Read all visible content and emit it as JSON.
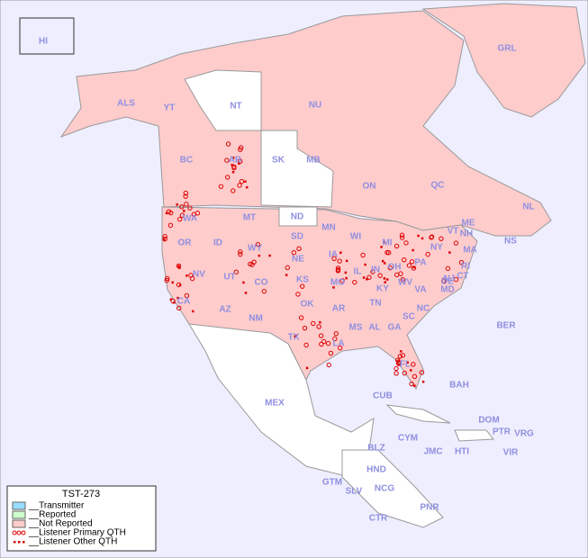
{
  "title": "TST-273",
  "legend": [
    "__Transmitter",
    "__Reported",
    "__Not Reported",
    "__Listener Primary QTH",
    "__Listener Other QTH"
  ],
  "regions": [
    "HI",
    "ALS",
    "YT",
    "NT",
    "NU",
    "GRL",
    "BC",
    "AB",
    "SK",
    "MB",
    "ON",
    "QC",
    "NL",
    "NS",
    "WA",
    "OR",
    "ID",
    "MT",
    "WY",
    "ND",
    "SD",
    "NE",
    "MN",
    "WI",
    "MI",
    "IA",
    "IL",
    "IN",
    "OH",
    "PA",
    "NY",
    "VT",
    "NH",
    "ME",
    "MA",
    "CT",
    "RI",
    "NJ",
    "DE",
    "MD",
    "WV",
    "VA",
    "NC",
    "KY",
    "TN",
    "SC",
    "GA",
    "AL",
    "MS",
    "AR",
    "LA",
    "TX",
    "OK",
    "KS",
    "MO",
    "CO",
    "UT",
    "NV",
    "CA",
    "AZ",
    "NM",
    "FL",
    "MEX",
    "CUB",
    "BAH",
    "DOM",
    "PTR",
    "VRG",
    "CYM",
    "JMC",
    "HTI",
    "VIR",
    "BER",
    "BLZ",
    "GTM",
    "HND",
    "SLV",
    "NCG",
    "CTR",
    "PNR"
  ]
}
